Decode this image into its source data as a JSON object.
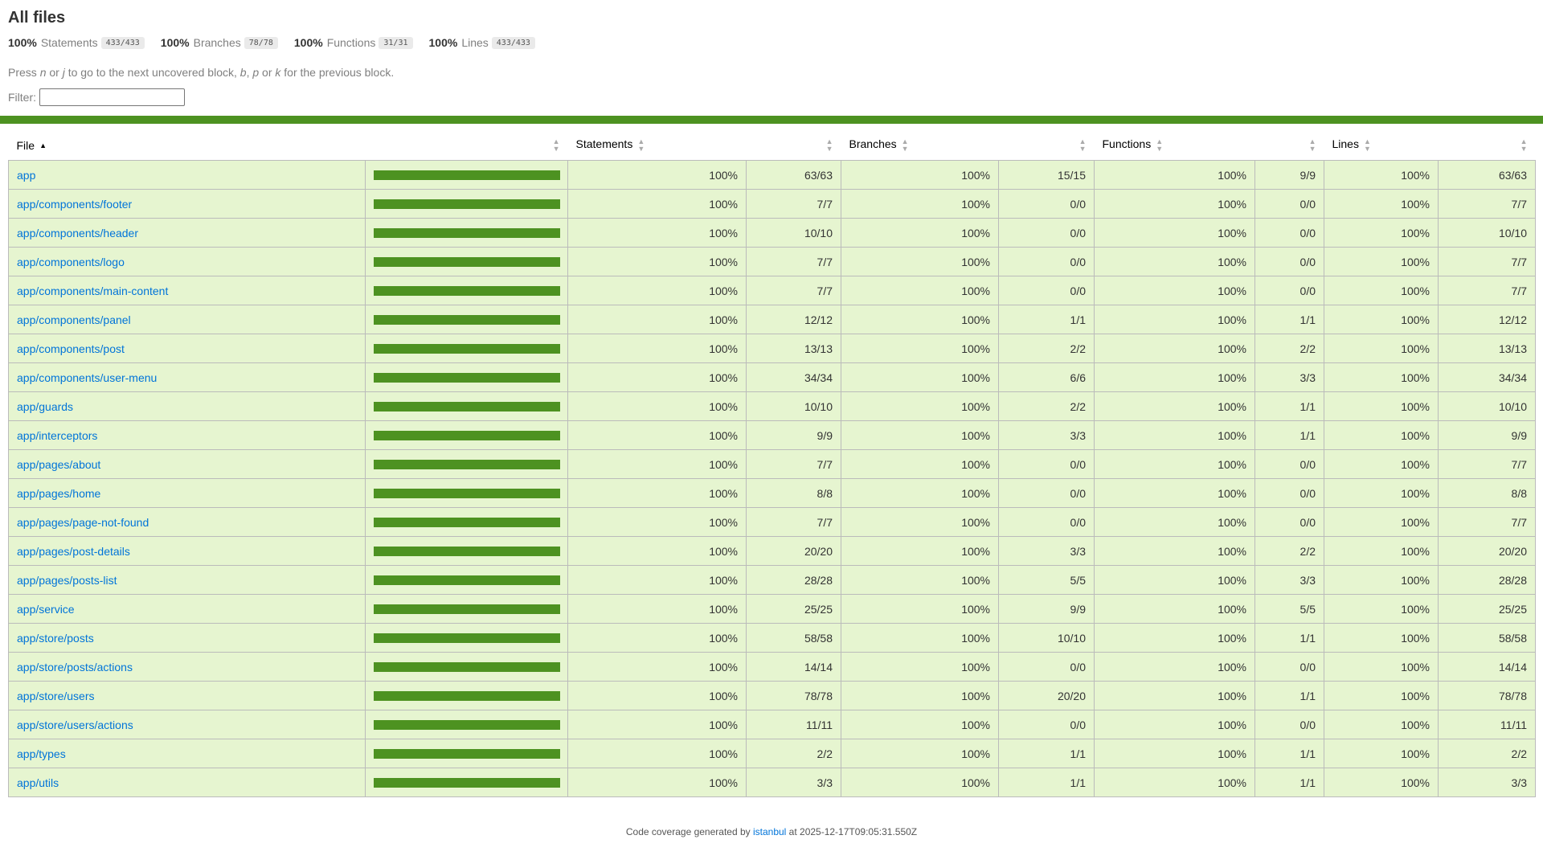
{
  "page": {
    "title": "All files",
    "hint": {
      "prefix": "Press ",
      "n": "n",
      "or1": " or ",
      "j": "j",
      "mid": " to go to the next uncovered block, ",
      "b": "b",
      "comma": ", ",
      "p": "p",
      "or2": " or ",
      "k": "k",
      "suffix": " for the previous block."
    },
    "filter_label": "Filter:",
    "filter_value": ""
  },
  "summary": [
    {
      "pct": "100%",
      "label": "Statements",
      "fraction": "433/433"
    },
    {
      "pct": "100%",
      "label": "Branches",
      "fraction": "78/78"
    },
    {
      "pct": "100%",
      "label": "Functions",
      "fraction": "31/31"
    },
    {
      "pct": "100%",
      "label": "Lines",
      "fraction": "433/433"
    }
  ],
  "colors": {
    "status_high": "#4d9221",
    "row_high": "#e6f5d0",
    "link": "#0074d9"
  },
  "table": {
    "headers": {
      "file": "File",
      "statements": "Statements",
      "branches": "Branches",
      "functions": "Functions",
      "lines": "Lines"
    },
    "rows": [
      {
        "file": "app",
        "coverage": 1.0,
        "stmt_pct": "100%",
        "stmt": "63/63",
        "br_pct": "100%",
        "br": "15/15",
        "fn_pct": "100%",
        "fn": "9/9",
        "ln_pct": "100%",
        "ln": "63/63"
      },
      {
        "file": "app/components/footer",
        "coverage": 1.0,
        "stmt_pct": "100%",
        "stmt": "7/7",
        "br_pct": "100%",
        "br": "0/0",
        "fn_pct": "100%",
        "fn": "0/0",
        "ln_pct": "100%",
        "ln": "7/7"
      },
      {
        "file": "app/components/header",
        "coverage": 1.0,
        "stmt_pct": "100%",
        "stmt": "10/10",
        "br_pct": "100%",
        "br": "0/0",
        "fn_pct": "100%",
        "fn": "0/0",
        "ln_pct": "100%",
        "ln": "10/10"
      },
      {
        "file": "app/components/logo",
        "coverage": 1.0,
        "stmt_pct": "100%",
        "stmt": "7/7",
        "br_pct": "100%",
        "br": "0/0",
        "fn_pct": "100%",
        "fn": "0/0",
        "ln_pct": "100%",
        "ln": "7/7"
      },
      {
        "file": "app/components/main-content",
        "coverage": 1.0,
        "stmt_pct": "100%",
        "stmt": "7/7",
        "br_pct": "100%",
        "br": "0/0",
        "fn_pct": "100%",
        "fn": "0/0",
        "ln_pct": "100%",
        "ln": "7/7"
      },
      {
        "file": "app/components/panel",
        "coverage": 1.0,
        "stmt_pct": "100%",
        "stmt": "12/12",
        "br_pct": "100%",
        "br": "1/1",
        "fn_pct": "100%",
        "fn": "1/1",
        "ln_pct": "100%",
        "ln": "12/12"
      },
      {
        "file": "app/components/post",
        "coverage": 1.0,
        "stmt_pct": "100%",
        "stmt": "13/13",
        "br_pct": "100%",
        "br": "2/2",
        "fn_pct": "100%",
        "fn": "2/2",
        "ln_pct": "100%",
        "ln": "13/13"
      },
      {
        "file": "app/components/user-menu",
        "coverage": 1.0,
        "stmt_pct": "100%",
        "stmt": "34/34",
        "br_pct": "100%",
        "br": "6/6",
        "fn_pct": "100%",
        "fn": "3/3",
        "ln_pct": "100%",
        "ln": "34/34"
      },
      {
        "file": "app/guards",
        "coverage": 1.0,
        "stmt_pct": "100%",
        "stmt": "10/10",
        "br_pct": "100%",
        "br": "2/2",
        "fn_pct": "100%",
        "fn": "1/1",
        "ln_pct": "100%",
        "ln": "10/10"
      },
      {
        "file": "app/interceptors",
        "coverage": 1.0,
        "stmt_pct": "100%",
        "stmt": "9/9",
        "br_pct": "100%",
        "br": "3/3",
        "fn_pct": "100%",
        "fn": "1/1",
        "ln_pct": "100%",
        "ln": "9/9"
      },
      {
        "file": "app/pages/about",
        "coverage": 1.0,
        "stmt_pct": "100%",
        "stmt": "7/7",
        "br_pct": "100%",
        "br": "0/0",
        "fn_pct": "100%",
        "fn": "0/0",
        "ln_pct": "100%",
        "ln": "7/7"
      },
      {
        "file": "app/pages/home",
        "coverage": 1.0,
        "stmt_pct": "100%",
        "stmt": "8/8",
        "br_pct": "100%",
        "br": "0/0",
        "fn_pct": "100%",
        "fn": "0/0",
        "ln_pct": "100%",
        "ln": "8/8"
      },
      {
        "file": "app/pages/page-not-found",
        "coverage": 1.0,
        "stmt_pct": "100%",
        "stmt": "7/7",
        "br_pct": "100%",
        "br": "0/0",
        "fn_pct": "100%",
        "fn": "0/0",
        "ln_pct": "100%",
        "ln": "7/7"
      },
      {
        "file": "app/pages/post-details",
        "coverage": 1.0,
        "stmt_pct": "100%",
        "stmt": "20/20",
        "br_pct": "100%",
        "br": "3/3",
        "fn_pct": "100%",
        "fn": "2/2",
        "ln_pct": "100%",
        "ln": "20/20"
      },
      {
        "file": "app/pages/posts-list",
        "coverage": 1.0,
        "stmt_pct": "100%",
        "stmt": "28/28",
        "br_pct": "100%",
        "br": "5/5",
        "fn_pct": "100%",
        "fn": "3/3",
        "ln_pct": "100%",
        "ln": "28/28"
      },
      {
        "file": "app/service",
        "coverage": 1.0,
        "stmt_pct": "100%",
        "stmt": "25/25",
        "br_pct": "100%",
        "br": "9/9",
        "fn_pct": "100%",
        "fn": "5/5",
        "ln_pct": "100%",
        "ln": "25/25"
      },
      {
        "file": "app/store/posts",
        "coverage": 1.0,
        "stmt_pct": "100%",
        "stmt": "58/58",
        "br_pct": "100%",
        "br": "10/10",
        "fn_pct": "100%",
        "fn": "1/1",
        "ln_pct": "100%",
        "ln": "58/58"
      },
      {
        "file": "app/store/posts/actions",
        "coverage": 1.0,
        "stmt_pct": "100%",
        "stmt": "14/14",
        "br_pct": "100%",
        "br": "0/0",
        "fn_pct": "100%",
        "fn": "0/0",
        "ln_pct": "100%",
        "ln": "14/14"
      },
      {
        "file": "app/store/users",
        "coverage": 1.0,
        "stmt_pct": "100%",
        "stmt": "78/78",
        "br_pct": "100%",
        "br": "20/20",
        "fn_pct": "100%",
        "fn": "1/1",
        "ln_pct": "100%",
        "ln": "78/78"
      },
      {
        "file": "app/store/users/actions",
        "coverage": 1.0,
        "stmt_pct": "100%",
        "stmt": "11/11",
        "br_pct": "100%",
        "br": "0/0",
        "fn_pct": "100%",
        "fn": "0/0",
        "ln_pct": "100%",
        "ln": "11/11"
      },
      {
        "file": "app/types",
        "coverage": 1.0,
        "stmt_pct": "100%",
        "stmt": "2/2",
        "br_pct": "100%",
        "br": "1/1",
        "fn_pct": "100%",
        "fn": "1/1",
        "ln_pct": "100%",
        "ln": "2/2"
      },
      {
        "file": "app/utils",
        "coverage": 1.0,
        "stmt_pct": "100%",
        "stmt": "3/3",
        "br_pct": "100%",
        "br": "1/1",
        "fn_pct": "100%",
        "fn": "1/1",
        "ln_pct": "100%",
        "ln": "3/3"
      }
    ]
  },
  "footer": {
    "prefix": "Code coverage generated by ",
    "link": "istanbul",
    "suffix": " at 2025-12-17T09:05:31.550Z"
  }
}
